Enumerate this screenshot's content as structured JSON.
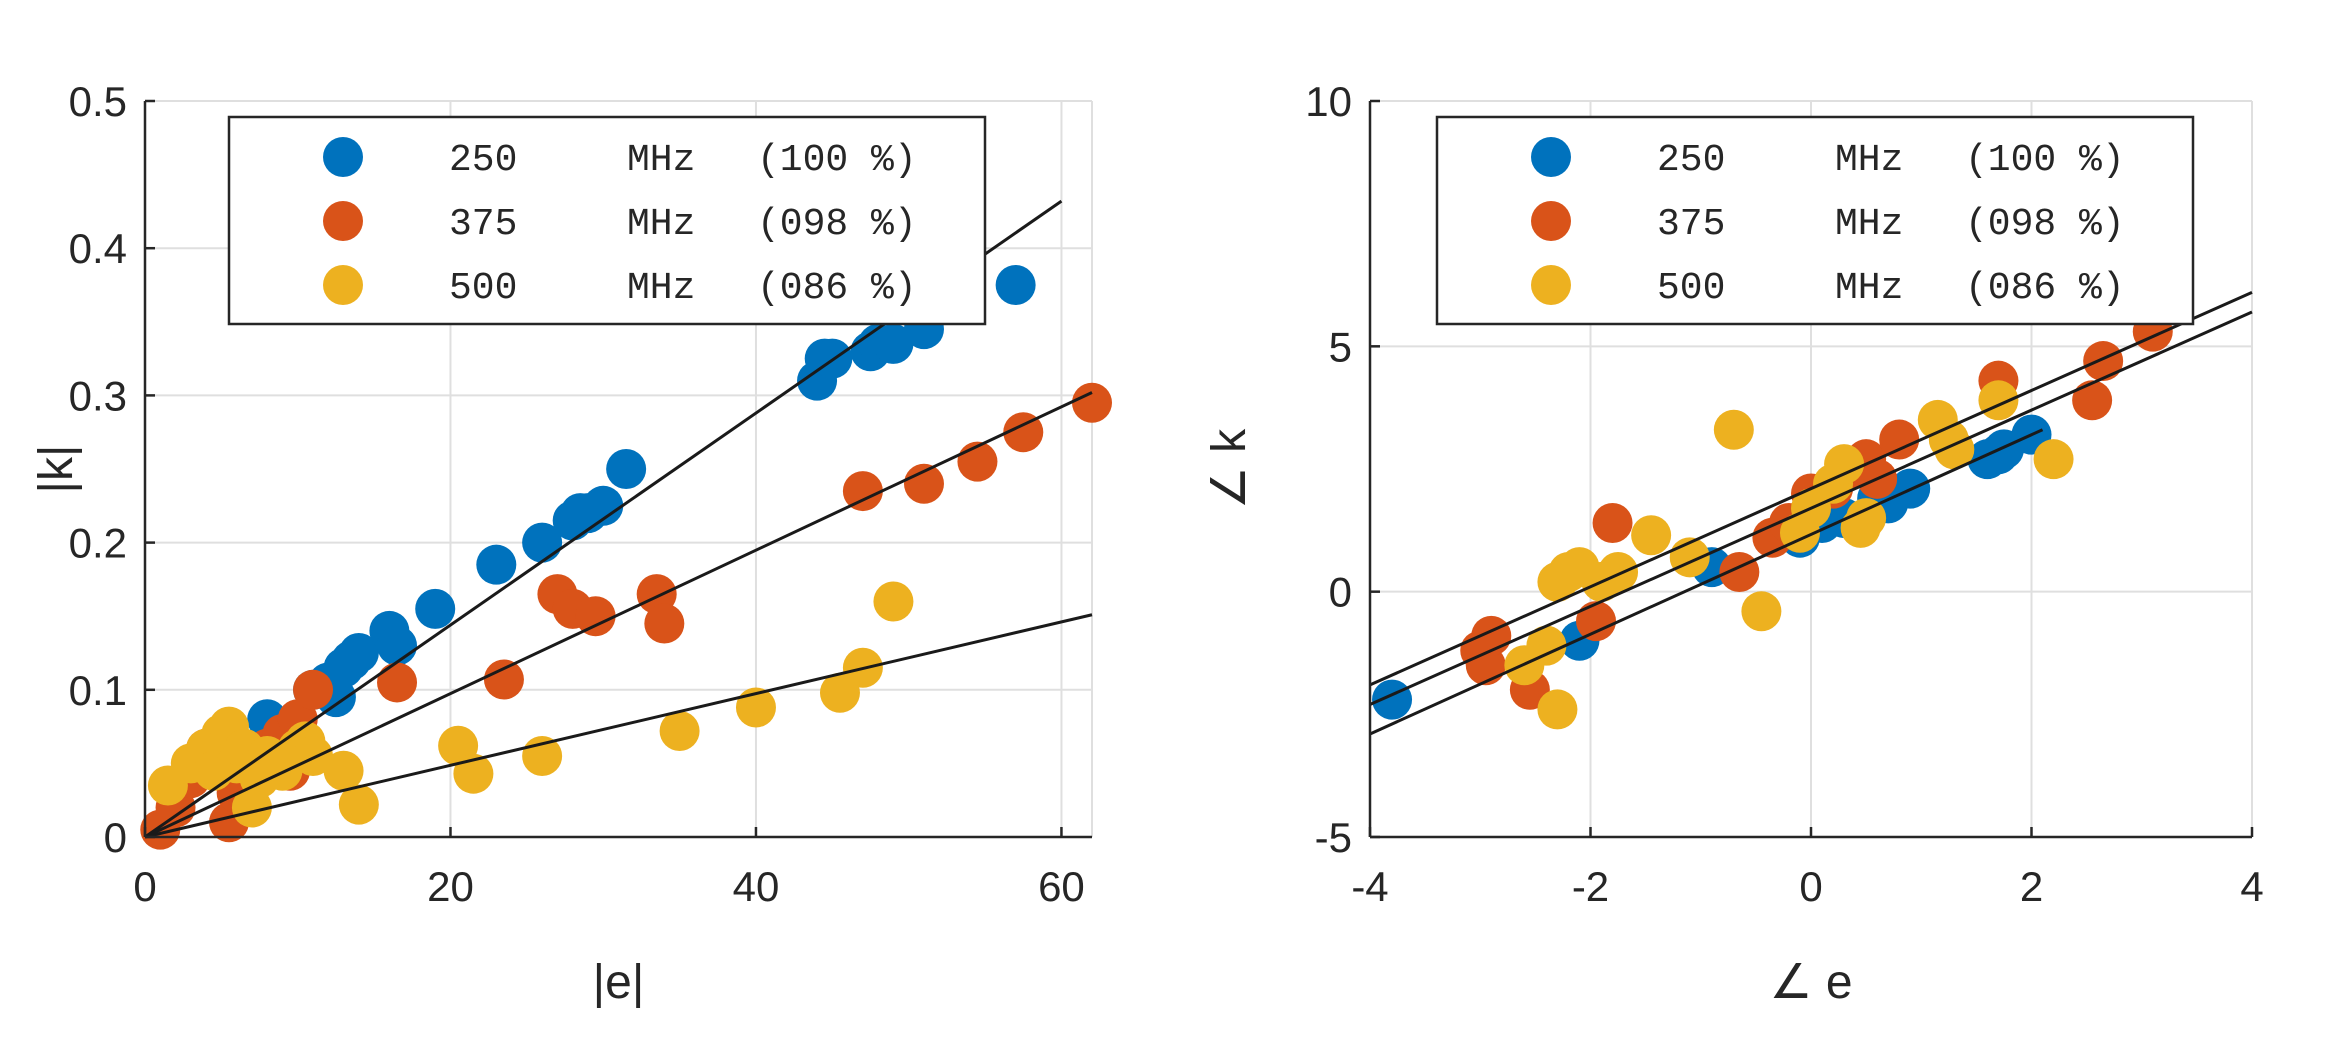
{
  "chart_data": [
    {
      "type": "scatter",
      "xlabel": "|e|",
      "ylabel": "|k|",
      "xlim": [
        0,
        62
      ],
      "ylim": [
        0,
        0.5
      ],
      "xticks": [
        "0",
        "20",
        "40",
        "60"
      ],
      "yticks": [
        "0",
        "0.1",
        "0.2",
        "0.3",
        "0.4",
        "0.5"
      ],
      "xtick_values": [
        0,
        20,
        40,
        60
      ],
      "ytick_values": [
        0,
        0.1,
        0.2,
        0.3,
        0.4,
        0.5
      ],
      "grid": true,
      "legend_position": "top-left",
      "series": [
        {
          "name": "250 MHz (100 %)",
          "label_parts": [
            "250",
            "MHz",
            "(100 %)"
          ],
          "color": "#0072BD",
          "points": [
            [
              8,
              0.08
            ],
            [
              11,
              0.1
            ],
            [
              12,
              0.105
            ],
            [
              12.5,
              0.095
            ],
            [
              13,
              0.115
            ],
            [
              13.5,
              0.12
            ],
            [
              14,
              0.125
            ],
            [
              16,
              0.14
            ],
            [
              16.5,
              0.13
            ],
            [
              19,
              0.155
            ],
            [
              23,
              0.185
            ],
            [
              26,
              0.2
            ],
            [
              28,
              0.215
            ],
            [
              28.5,
              0.22
            ],
            [
              29,
              0.22
            ],
            [
              30,
              0.225
            ],
            [
              31.5,
              0.25
            ],
            [
              44,
              0.31
            ],
            [
              44.5,
              0.325
            ],
            [
              45,
              0.325
            ],
            [
              47.5,
              0.33
            ],
            [
              48,
              0.335
            ],
            [
              49,
              0.335
            ],
            [
              51,
              0.345
            ],
            [
              57,
              0.375
            ]
          ],
          "fit": [
            [
              0,
              0
            ],
            [
              60,
              0.432
            ]
          ]
        },
        {
          "name": "375 MHz (098 %)",
          "label_parts": [
            "375",
            "MHz",
            "(098 %)"
          ],
          "color": "#D95319",
          "points": [
            [
              1,
              0.005
            ],
            [
              2,
              0.02
            ],
            [
              3,
              0.04
            ],
            [
              4,
              0.06
            ],
            [
              5,
              0.055
            ],
            [
              5.5,
              0.01
            ],
            [
              6,
              0.03
            ],
            [
              6.5,
              0.04
            ],
            [
              7,
              0.05
            ],
            [
              8,
              0.06
            ],
            [
              9,
              0.07
            ],
            [
              9.5,
              0.045
            ],
            [
              10,
              0.08
            ],
            [
              11,
              0.1
            ],
            [
              16.5,
              0.105
            ],
            [
              23.5,
              0.107
            ],
            [
              27,
              0.165
            ],
            [
              28,
              0.155
            ],
            [
              29.5,
              0.15
            ],
            [
              33.5,
              0.165
            ],
            [
              34,
              0.145
            ],
            [
              47,
              0.235
            ],
            [
              51,
              0.24
            ],
            [
              54.5,
              0.255
            ],
            [
              57.5,
              0.275
            ],
            [
              62,
              0.295
            ]
          ],
          "fit": [
            [
              0,
              0
            ],
            [
              62,
              0.302
            ]
          ]
        },
        {
          "name": "500 MHz (086 %)",
          "label_parts": [
            "500",
            "MHz",
            "(086 %)"
          ],
          "color": "#EDB120",
          "points": [
            [
              1.5,
              0.035
            ],
            [
              3,
              0.05
            ],
            [
              4,
              0.06
            ],
            [
              4.5,
              0.045
            ],
            [
              5,
              0.07
            ],
            [
              5.5,
              0.075
            ],
            [
              6,
              0.05
            ],
            [
              6.5,
              0.06
            ],
            [
              7,
              0.02
            ],
            [
              7.5,
              0.04
            ],
            [
              8,
              0.055
            ],
            [
              9,
              0.045
            ],
            [
              10,
              0.06
            ],
            [
              10.5,
              0.065
            ],
            [
              11,
              0.055
            ],
            [
              13,
              0.045
            ],
            [
              14,
              0.022
            ],
            [
              20.5,
              0.062
            ],
            [
              21.5,
              0.043
            ],
            [
              26,
              0.055
            ],
            [
              35,
              0.072
            ],
            [
              40,
              0.088
            ],
            [
              45.5,
              0.098
            ],
            [
              47,
              0.115
            ],
            [
              49,
              0.16
            ]
          ],
          "fit": [
            [
              0,
              0
            ],
            [
              62,
              0.151
            ]
          ]
        }
      ]
    },
    {
      "type": "scatter",
      "xlabel": "∠ e",
      "ylabel": "∠ k",
      "xlim": [
        -4,
        4
      ],
      "ylim": [
        -5,
        10
      ],
      "xticks": [
        "-4",
        "-2",
        "0",
        "2",
        "4"
      ],
      "yticks": [
        "-5",
        "0",
        "5",
        "10"
      ],
      "xtick_values": [
        -4,
        -2,
        0,
        2,
        4
      ],
      "ytick_values": [
        -5,
        0,
        5,
        10
      ],
      "grid": true,
      "legend_position": "top",
      "series": [
        {
          "name": "250 MHz (100 %)",
          "label_parts": [
            "250",
            "MHz",
            "(100 %)"
          ],
          "color": "#0072BD",
          "points": [
            [
              -3.8,
              -2.2
            ],
            [
              -2.1,
              -1.0
            ],
            [
              -0.9,
              0.5
            ],
            [
              -0.1,
              1.1
            ],
            [
              0.1,
              1.4
            ],
            [
              0.3,
              1.5
            ],
            [
              0.6,
              1.9
            ],
            [
              0.7,
              1.8
            ],
            [
              0.9,
              2.1
            ],
            [
              1.6,
              2.7
            ],
            [
              1.7,
              2.8
            ],
            [
              1.75,
              2.9
            ],
            [
              2.0,
              3.2
            ]
          ],
          "fit": [
            [
              -4,
              -2.9
            ],
            [
              2.1,
              3.3
            ]
          ]
        },
        {
          "name": "375 MHz (098 %)",
          "label_parts": [
            "375",
            "MHz",
            "(098 %)"
          ],
          "color": "#D95319",
          "points": [
            [
              -3.0,
              -1.2
            ],
            [
              -2.95,
              -1.5
            ],
            [
              -2.9,
              -0.9
            ],
            [
              -2.55,
              -2.0
            ],
            [
              -1.95,
              -0.6
            ],
            [
              -1.8,
              1.4
            ],
            [
              -0.65,
              0.4
            ],
            [
              -0.35,
              1.1
            ],
            [
              -0.2,
              1.4
            ],
            [
              0,
              2.0
            ],
            [
              0.2,
              2.1
            ],
            [
              0.35,
              2.5
            ],
            [
              0.5,
              2.7
            ],
            [
              0.6,
              2.3
            ],
            [
              0.8,
              3.1
            ],
            [
              1.7,
              4.3
            ],
            [
              2.55,
              3.9
            ],
            [
              2.65,
              4.7
            ],
            [
              3.1,
              5.3
            ]
          ],
          "fit": [
            [
              -4,
              -2.3
            ],
            [
              4,
              5.7
            ]
          ]
        },
        {
          "name": "500 MHz (086 %)",
          "label_parts": [
            "500",
            "MHz",
            "(086 %)"
          ],
          "color": "#EDB120",
          "points": [
            [
              -2.6,
              -1.5
            ],
            [
              -2.4,
              -1.1
            ],
            [
              -2.3,
              -2.4
            ],
            [
              -2.3,
              0.2
            ],
            [
              -2.2,
              0.4
            ],
            [
              -2.1,
              0.5
            ],
            [
              -1.9,
              0.2
            ],
            [
              -1.75,
              0.4
            ],
            [
              -1.45,
              1.15
            ],
            [
              -1.1,
              0.7
            ],
            [
              -0.7,
              3.3
            ],
            [
              -0.45,
              -0.4
            ],
            [
              -0.1,
              1.2
            ],
            [
              0,
              1.7
            ],
            [
              0.2,
              2.2
            ],
            [
              0.3,
              2.6
            ],
            [
              0.45,
              1.3
            ],
            [
              0.5,
              1.5
            ],
            [
              1.15,
              3.5
            ],
            [
              1.25,
              3.1
            ],
            [
              1.3,
              2.9
            ],
            [
              1.7,
              3.9
            ],
            [
              2.2,
              2.7
            ]
          ],
          "fit": [
            [
              -4,
              -1.9
            ],
            [
              4,
              6.1
            ]
          ]
        }
      ]
    }
  ]
}
